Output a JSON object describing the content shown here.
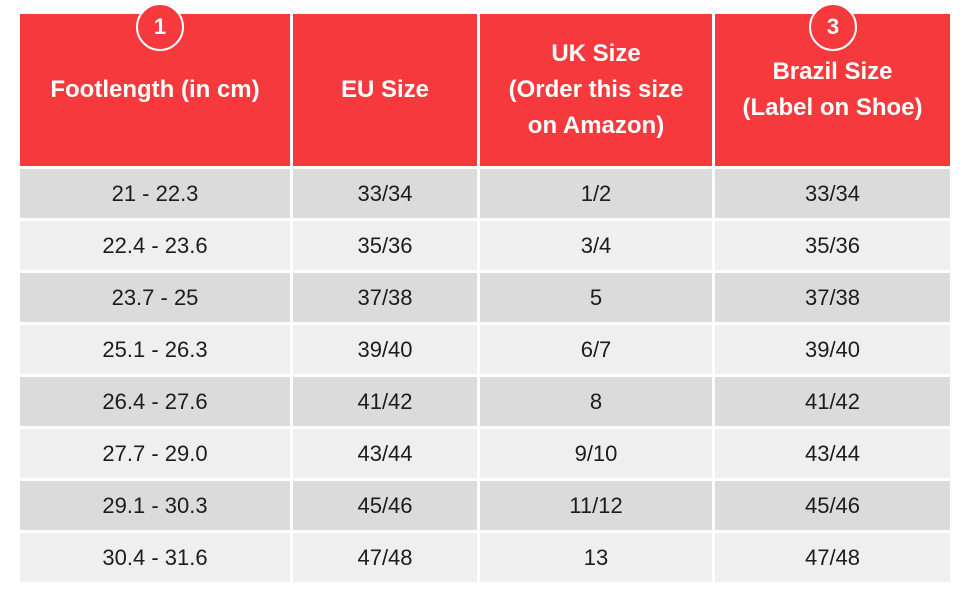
{
  "badges": [
    {
      "label": "1"
    },
    {
      "label": "3"
    }
  ],
  "table": {
    "columns": [
      {
        "label": "Footlength (in cm)"
      },
      {
        "label": "EU Size"
      },
      {
        "label": "UK Size\n(Order this size\non Amazon)"
      },
      {
        "label": "Brazil Size\n(Label on Shoe)"
      }
    ],
    "rows": [
      [
        "21 - 22.3",
        "33/34",
        "1/2",
        "33/34"
      ],
      [
        "22.4 - 23.6",
        "35/36",
        "3/4",
        "35/36"
      ],
      [
        "23.7 - 25",
        "37/38",
        "5",
        "37/38"
      ],
      [
        "25.1 - 26.3",
        "39/40",
        "6/7",
        "39/40"
      ],
      [
        "26.4 - 27.6",
        "41/42",
        "8",
        "41/42"
      ],
      [
        "27.7 - 29.0",
        "43/44",
        "9/10",
        "43/44"
      ],
      [
        "29.1 - 30.3",
        "45/46",
        "11/12",
        "45/46"
      ],
      [
        "30.4 - 31.6",
        "47/48",
        "13",
        "47/48"
      ]
    ]
  },
  "colors": {
    "header_red": "#f5393d",
    "row_dark": "#dbdbdb",
    "row_light": "#efefef",
    "header_text": "#ffffff",
    "body_text": "#1c1c1c"
  },
  "chart_data": {
    "type": "table",
    "title": "",
    "columns": [
      "Footlength (in cm)",
      "EU Size",
      "UK Size (Order this size on Amazon)",
      "Brazil Size (Label on Shoe)"
    ],
    "rows": [
      [
        "21 - 22.3",
        "33/34",
        "1/2",
        "33/34"
      ],
      [
        "22.4 - 23.6",
        "35/36",
        "3/4",
        "35/36"
      ],
      [
        "23.7 - 25",
        "37/38",
        "5",
        "37/38"
      ],
      [
        "25.1 - 26.3",
        "39/40",
        "6/7",
        "39/40"
      ],
      [
        "26.4 - 27.6",
        "41/42",
        "8",
        "41/42"
      ],
      [
        "27.7 - 29.0",
        "43/44",
        "9/10",
        "43/44"
      ],
      [
        "29.1 - 30.3",
        "45/46",
        "11/12",
        "45/46"
      ],
      [
        "30.4 - 31.6",
        "47/48",
        "13",
        "47/48"
      ]
    ],
    "annotations": [
      "1 (circled, above Footlength column)",
      "3 (circled, above Brazil Size column)"
    ],
    "layout": {
      "header_fill": "#f5393d",
      "alternating_row_fills": [
        "#dbdbdb",
        "#efefef"
      ],
      "grid": "white separators"
    }
  }
}
